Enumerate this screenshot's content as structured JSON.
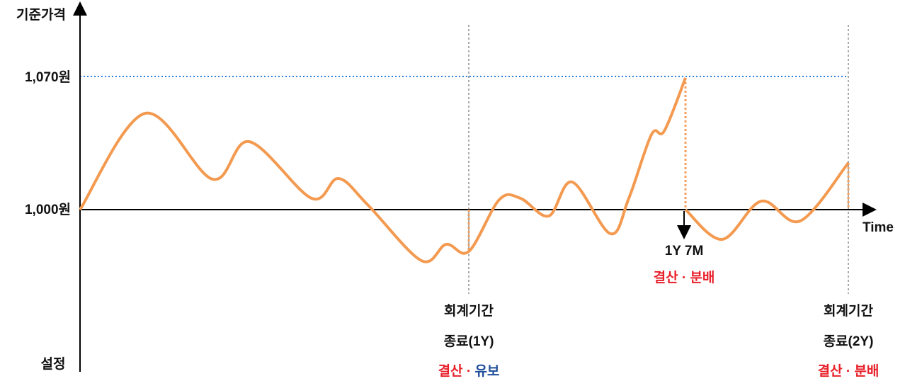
{
  "axis": {
    "y_label": "기준가격",
    "y_high": "1,070원",
    "y_base": "1,000원",
    "origin": "설정",
    "x_label": "Time"
  },
  "event": {
    "time": "1Y 7M",
    "action": "결산 · 분배"
  },
  "period_ends": [
    {
      "line1": "회계기간",
      "line2": "종료(1Y)",
      "action_a": "결산 · ",
      "action_b": "유보"
    },
    {
      "line1": "회계기간",
      "line2": "종료(2Y)",
      "action_a": "결산 · 분배"
    }
  ]
}
